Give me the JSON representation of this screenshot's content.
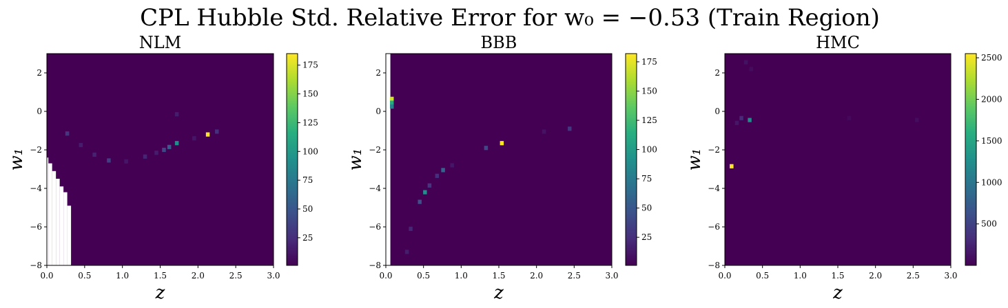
{
  "figure": {
    "title": "CPL Hubble Std. Relative Error for w₀ = −0.53 (Train Region)"
  },
  "chart_data": [
    {
      "type": "heatmap",
      "title": "NLM",
      "xlabel": "z",
      "ylabel": "w₁",
      "xlim": [
        0.0,
        3.0
      ],
      "ylim": [
        -8,
        3
      ],
      "xticks": [
        "0.0",
        "0.5",
        "1.0",
        "1.5",
        "2.0",
        "2.5",
        "3.0"
      ],
      "yticks": [
        "2",
        "0",
        "−2",
        "−4",
        "−6",
        "−8"
      ],
      "colorbar": {
        "range": [
          1,
          185
        ],
        "ticks": [
          "175",
          "150",
          "125",
          "100",
          "75",
          "50",
          "25"
        ]
      },
      "colormap": "viridis",
      "background_value": 1,
      "missing_region": [
        {
          "z_max": 0.02,
          "w1_max": -2.4
        },
        {
          "z_max": 0.07,
          "w1_max": -2.7
        },
        {
          "z_max": 0.12,
          "w1_max": -3.1
        },
        {
          "z_max": 0.17,
          "w1_max": -3.5
        },
        {
          "z_max": 0.22,
          "w1_max": -3.9
        },
        {
          "z_max": 0.27,
          "w1_max": -4.2
        },
        {
          "z_max": 0.32,
          "w1_max": -4.9
        },
        {
          "z_max": 0.36,
          "w1_max": -8.0
        }
      ],
      "hot_cells": [
        {
          "z": 0.27,
          "w1": -1.15,
          "value": 30
        },
        {
          "z": 0.45,
          "w1": -1.75,
          "value": 15
        },
        {
          "z": 0.63,
          "w1": -2.25,
          "value": 18
        },
        {
          "z": 0.82,
          "w1": -2.55,
          "value": 35
        },
        {
          "z": 1.05,
          "w1": -2.6,
          "value": 12
        },
        {
          "z": 1.3,
          "w1": -2.35,
          "value": 20
        },
        {
          "z": 1.45,
          "w1": -2.15,
          "value": 15
        },
        {
          "z": 1.55,
          "w1": -2.0,
          "value": 40
        },
        {
          "z": 1.62,
          "w1": -1.85,
          "value": 55
        },
        {
          "z": 1.72,
          "w1": -1.65,
          "value": 90
        },
        {
          "z": 1.72,
          "w1": -0.15,
          "value": 15
        },
        {
          "z": 2.13,
          "w1": -1.2,
          "value": 185
        },
        {
          "z": 2.25,
          "w1": -1.05,
          "value": 25
        },
        {
          "z": 1.95,
          "w1": -1.4,
          "value": 12
        }
      ]
    },
    {
      "type": "heatmap",
      "title": "BBB",
      "xlabel": "z",
      "ylabel": "w₁",
      "xlim": [
        0.0,
        3.0
      ],
      "ylim": [
        -8,
        3
      ],
      "xticks": [
        "0.0",
        "0.5",
        "1.0",
        "1.5",
        "2.0",
        "2.5",
        "3.0"
      ],
      "yticks": [
        "2",
        "0",
        "−2",
        "−4",
        "−6",
        "−8"
      ],
      "colorbar": {
        "range": [
          1,
          182
        ],
        "ticks": [
          "175",
          "150",
          "125",
          "100",
          "75",
          "50",
          "25"
        ]
      },
      "colormap": "viridis",
      "background_value": 1,
      "missing_region": [
        {
          "z_max": 0.06,
          "w1_max": 3.0
        }
      ],
      "hot_cells": [
        {
          "z": 0.08,
          "w1": 0.65,
          "value": 170
        },
        {
          "z": 0.08,
          "w1": 0.45,
          "value": 110
        },
        {
          "z": 0.08,
          "w1": 0.25,
          "value": 80
        },
        {
          "z": 0.28,
          "w1": -7.3,
          "value": 15
        },
        {
          "z": 0.33,
          "w1": -6.1,
          "value": 20
        },
        {
          "z": 0.45,
          "w1": -4.7,
          "value": 45
        },
        {
          "z": 0.52,
          "w1": -4.2,
          "value": 90
        },
        {
          "z": 0.58,
          "w1": -3.85,
          "value": 30
        },
        {
          "z": 0.68,
          "w1": -3.35,
          "value": 25
        },
        {
          "z": 0.76,
          "w1": -3.05,
          "value": 60
        },
        {
          "z": 0.88,
          "w1": -2.8,
          "value": 12
        },
        {
          "z": 1.33,
          "w1": -1.9,
          "value": 40
        },
        {
          "z": 1.54,
          "w1": -1.65,
          "value": 182
        },
        {
          "z": 2.1,
          "w1": -1.05,
          "value": 10
        },
        {
          "z": 2.44,
          "w1": -0.9,
          "value": 30
        }
      ]
    },
    {
      "type": "heatmap",
      "title": "HMC",
      "xlabel": "z",
      "ylabel": "w₁",
      "xlim": [
        0.0,
        3.0
      ],
      "ylim": [
        -8,
        3
      ],
      "xticks": [
        "0.0",
        "0.5",
        "1.0",
        "1.5",
        "2.0",
        "2.5",
        "3.0"
      ],
      "yticks": [
        "2",
        "0",
        "−2",
        "−4",
        "−6",
        "−8"
      ],
      "colorbar": {
        "range": [
          1,
          2550
        ],
        "ticks": [
          "2500",
          "2000",
          "1500",
          "1000",
          "500"
        ]
      },
      "colormap": "viridis",
      "background_value": 1,
      "missing_region": [],
      "hot_cells": [
        {
          "z": 0.09,
          "w1": -2.85,
          "value": 2550
        },
        {
          "z": 0.33,
          "w1": -0.45,
          "value": 1200
        },
        {
          "z": 0.22,
          "w1": -0.35,
          "value": 300
        },
        {
          "z": 0.16,
          "w1": -0.6,
          "value": 150
        },
        {
          "z": 0.28,
          "w1": 2.55,
          "value": 120
        },
        {
          "z": 0.35,
          "w1": 2.2,
          "value": 80
        },
        {
          "z": 1.65,
          "w1": -0.35,
          "value": 60
        },
        {
          "z": 2.55,
          "w1": -0.45,
          "value": 90
        }
      ]
    }
  ]
}
